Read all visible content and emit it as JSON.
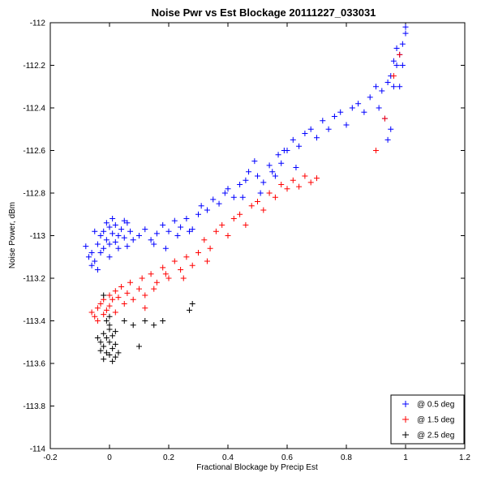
{
  "chart_data": {
    "type": "scatter",
    "title": "Noise Pwr vs Est Blockage  20111227_033031",
    "xlabel": "Fractional Blockage by Precip Est",
    "ylabel": "Noise Power, dBm",
    "xlim": [
      -0.2,
      1.2
    ],
    "ylim": [
      -114,
      -112
    ],
    "xticks": [
      -0.2,
      0,
      0.2,
      0.4,
      0.6,
      0.8,
      1,
      1.2
    ],
    "yticks": [
      -114,
      -113.8,
      -113.6,
      -113.4,
      -113.2,
      -113,
      -112.8,
      -112.6,
      -112.4,
      -112.2,
      -112
    ],
    "grid": false,
    "legend_position": "bottom-right",
    "marker": "+",
    "series": [
      {
        "name": "@ 0.5 deg",
        "color": "#0000ff",
        "points": [
          [
            -0.08,
            -113.05
          ],
          [
            -0.07,
            -113.1
          ],
          [
            -0.06,
            -113.08
          ],
          [
            -0.05,
            -113.12
          ],
          [
            -0.04,
            -113.04
          ],
          [
            -0.03,
            -113.0
          ],
          [
            -0.02,
            -113.06
          ],
          [
            -0.02,
            -112.98
          ],
          [
            -0.01,
            -113.02
          ],
          [
            0.0,
            -112.96
          ],
          [
            0.0,
            -113.04
          ],
          [
            0.01,
            -112.99
          ],
          [
            0.02,
            -113.03
          ],
          [
            0.02,
            -112.95
          ],
          [
            0.03,
            -113.0
          ],
          [
            0.04,
            -112.97
          ],
          [
            0.05,
            -113.01
          ],
          [
            0.06,
            -112.94
          ],
          [
            0.07,
            -112.98
          ],
          [
            0.08,
            -113.02
          ],
          [
            -0.05,
            -112.98
          ],
          [
            -0.03,
            -113.08
          ],
          [
            0.0,
            -113.1
          ],
          [
            0.03,
            -113.06
          ],
          [
            0.05,
            -112.93
          ],
          [
            -0.06,
            -113.14
          ],
          [
            -0.04,
            -113.16
          ],
          [
            0.01,
            -112.92
          ],
          [
            0.06,
            -113.05
          ],
          [
            -0.01,
            -112.94
          ],
          [
            0.1,
            -113.0
          ],
          [
            0.12,
            -112.97
          ],
          [
            0.14,
            -113.02
          ],
          [
            0.16,
            -112.99
          ],
          [
            0.18,
            -112.95
          ],
          [
            0.2,
            -112.98
          ],
          [
            0.22,
            -112.93
          ],
          [
            0.24,
            -112.96
          ],
          [
            0.26,
            -112.92
          ],
          [
            0.28,
            -112.97
          ],
          [
            0.15,
            -113.04
          ],
          [
            0.19,
            -113.06
          ],
          [
            0.23,
            -113.0
          ],
          [
            0.27,
            -112.98
          ],
          [
            0.3,
            -112.9
          ],
          [
            0.31,
            -112.86
          ],
          [
            0.33,
            -112.88
          ],
          [
            0.35,
            -112.83
          ],
          [
            0.37,
            -112.85
          ],
          [
            0.39,
            -112.8
          ],
          [
            0.4,
            -112.78
          ],
          [
            0.42,
            -112.82
          ],
          [
            0.44,
            -112.76
          ],
          [
            0.46,
            -112.74
          ],
          [
            0.47,
            -112.7
          ],
          [
            0.49,
            -112.65
          ],
          [
            0.5,
            -112.72
          ],
          [
            0.52,
            -112.75
          ],
          [
            0.54,
            -112.67
          ],
          [
            0.55,
            -112.7
          ],
          [
            0.57,
            -112.62
          ],
          [
            0.58,
            -112.66
          ],
          [
            0.6,
            -112.6
          ],
          [
            0.62,
            -112.55
          ],
          [
            0.64,
            -112.58
          ],
          [
            0.66,
            -112.52
          ],
          [
            0.68,
            -112.5
          ],
          [
            0.7,
            -112.54
          ],
          [
            0.72,
            -112.46
          ],
          [
            0.74,
            -112.5
          ],
          [
            0.76,
            -112.44
          ],
          [
            0.78,
            -112.42
          ],
          [
            0.8,
            -112.48
          ],
          [
            0.82,
            -112.4
          ],
          [
            0.84,
            -112.38
          ],
          [
            0.86,
            -112.42
          ],
          [
            0.88,
            -112.35
          ],
          [
            0.9,
            -112.3
          ],
          [
            0.91,
            -112.4
          ],
          [
            0.92,
            -112.32
          ],
          [
            0.93,
            -112.45
          ],
          [
            0.94,
            -112.28
          ],
          [
            0.95,
            -112.25
          ],
          [
            0.96,
            -112.3
          ],
          [
            0.97,
            -112.2
          ],
          [
            0.98,
            -112.15
          ],
          [
            0.99,
            -112.1
          ],
          [
            1.0,
            -112.05
          ],
          [
            1.0,
            -112.02
          ],
          [
            0.99,
            -112.2
          ],
          [
            0.98,
            -112.3
          ],
          [
            0.97,
            -112.12
          ],
          [
            0.96,
            -112.18
          ],
          [
            0.95,
            -112.5
          ],
          [
            0.94,
            -112.55
          ],
          [
            0.63,
            -112.68
          ],
          [
            0.59,
            -112.6
          ],
          [
            0.56,
            -112.72
          ],
          [
            0.51,
            -112.8
          ],
          [
            0.45,
            -112.82
          ]
        ]
      },
      {
        "name": "@ 1.5 deg",
        "color": "#ff0000",
        "points": [
          [
            -0.06,
            -113.36
          ],
          [
            -0.05,
            -113.38
          ],
          [
            -0.04,
            -113.34
          ],
          [
            -0.04,
            -113.4
          ],
          [
            -0.03,
            -113.32
          ],
          [
            -0.02,
            -113.37
          ],
          [
            -0.02,
            -113.3
          ],
          [
            -0.01,
            -113.35
          ],
          [
            0.0,
            -113.28
          ],
          [
            0.0,
            -113.33
          ],
          [
            0.01,
            -113.3
          ],
          [
            0.02,
            -113.26
          ],
          [
            0.02,
            -113.36
          ],
          [
            0.03,
            -113.29
          ],
          [
            0.04,
            -113.24
          ],
          [
            0.05,
            -113.32
          ],
          [
            0.06,
            -113.27
          ],
          [
            0.07,
            -113.22
          ],
          [
            0.08,
            -113.3
          ],
          [
            0.1,
            -113.25
          ],
          [
            0.11,
            -113.2
          ],
          [
            0.12,
            -113.28
          ],
          [
            0.14,
            -113.18
          ],
          [
            0.16,
            -113.22
          ],
          [
            0.18,
            -113.15
          ],
          [
            0.2,
            -113.2
          ],
          [
            0.22,
            -113.12
          ],
          [
            0.24,
            -113.16
          ],
          [
            0.26,
            -113.1
          ],
          [
            0.28,
            -113.14
          ],
          [
            0.3,
            -113.08
          ],
          [
            0.32,
            -113.02
          ],
          [
            0.34,
            -113.06
          ],
          [
            0.36,
            -112.98
          ],
          [
            0.38,
            -112.95
          ],
          [
            0.4,
            -113.0
          ],
          [
            0.42,
            -112.92
          ],
          [
            0.44,
            -112.9
          ],
          [
            0.46,
            -112.95
          ],
          [
            0.48,
            -112.86
          ],
          [
            0.5,
            -112.84
          ],
          [
            0.52,
            -112.88
          ],
          [
            0.54,
            -112.8
          ],
          [
            0.56,
            -112.82
          ],
          [
            0.58,
            -112.76
          ],
          [
            0.6,
            -112.78
          ],
          [
            0.62,
            -112.74
          ],
          [
            0.64,
            -112.77
          ],
          [
            0.66,
            -112.72
          ],
          [
            0.68,
            -112.75
          ],
          [
            0.7,
            -112.73
          ],
          [
            0.9,
            -112.6
          ],
          [
            0.93,
            -112.45
          ],
          [
            0.96,
            -112.25
          ],
          [
            0.98,
            -112.15
          ],
          [
            0.15,
            -113.25
          ],
          [
            0.19,
            -113.18
          ],
          [
            0.25,
            -113.2
          ],
          [
            0.33,
            -113.12
          ],
          [
            0.12,
            -113.34
          ]
        ]
      },
      {
        "name": "@ 2.5 deg",
        "color": "#000000",
        "points": [
          [
            -0.03,
            -113.5
          ],
          [
            -0.02,
            -113.52
          ],
          [
            -0.02,
            -113.46
          ],
          [
            -0.01,
            -113.55
          ],
          [
            -0.01,
            -113.48
          ],
          [
            0.0,
            -113.5
          ],
          [
            0.0,
            -113.56
          ],
          [
            0.0,
            -113.44
          ],
          [
            0.01,
            -113.53
          ],
          [
            0.01,
            -113.47
          ],
          [
            0.02,
            -113.51
          ],
          [
            0.02,
            -113.57
          ],
          [
            -0.03,
            -113.54
          ],
          [
            -0.02,
            -113.58
          ],
          [
            0.0,
            -113.42
          ],
          [
            0.01,
            -113.59
          ],
          [
            -0.01,
            -113.4
          ],
          [
            0.02,
            -113.45
          ],
          [
            0.03,
            -113.55
          ],
          [
            -0.04,
            -113.48
          ],
          [
            0.0,
            -113.38
          ],
          [
            -0.02,
            -113.28
          ],
          [
            0.05,
            -113.4
          ],
          [
            0.08,
            -113.42
          ],
          [
            0.12,
            -113.4
          ],
          [
            0.15,
            -113.42
          ],
          [
            0.18,
            -113.4
          ],
          [
            0.1,
            -113.52
          ],
          [
            0.28,
            -113.32
          ],
          [
            0.27,
            -113.35
          ]
        ]
      }
    ]
  }
}
